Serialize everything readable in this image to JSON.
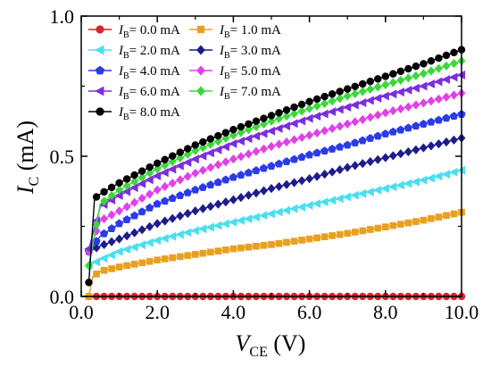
{
  "chart_data": {
    "type": "line",
    "title": "",
    "xlabel": {
      "main": "V",
      "sub": "CE",
      "unit": " (V)"
    },
    "ylabel": {
      "main": "I",
      "sub": "C",
      "unit": " (mA)"
    },
    "xlim": [
      0,
      10
    ],
    "ylim": [
      0,
      1
    ],
    "xticks": [
      "0.0",
      "2.0",
      "4.0",
      "6.0",
      "8.0",
      "10.0"
    ],
    "yticks": [
      "0.0",
      "0.5",
      "1.0"
    ],
    "grid": false,
    "legend_position": "top-left",
    "legend_prefix": {
      "main": "I",
      "sub": "B",
      "eq": "="
    },
    "series": [
      {
        "name": "0.0 mA",
        "color": "#d62728",
        "marker": "circle",
        "points": [
          [
            0.2,
            0.0
          ],
          [
            10,
            0.0
          ]
        ]
      },
      {
        "name": "1.0 mA",
        "color": "#e8a020",
        "marker": "square",
        "points": [
          [
            0.2,
            0.0
          ],
          [
            0.3,
            0.07
          ],
          [
            0.5,
            0.09
          ],
          [
            1,
            0.105
          ],
          [
            2,
            0.13
          ],
          [
            3,
            0.15
          ],
          [
            4,
            0.17
          ],
          [
            5,
            0.185
          ],
          [
            6,
            0.205
          ],
          [
            7,
            0.225
          ],
          [
            8,
            0.248
          ],
          [
            9,
            0.272
          ],
          [
            10,
            0.3
          ]
        ]
      },
      {
        "name": "2.0 mA",
        "color": "#48e0f0",
        "marker": "triangle-left",
        "points": [
          [
            0.2,
            0.11
          ],
          [
            0.5,
            0.13
          ],
          [
            1,
            0.16
          ],
          [
            2,
            0.2
          ],
          [
            3,
            0.235
          ],
          [
            4,
            0.265
          ],
          [
            5,
            0.295
          ],
          [
            6,
            0.325
          ],
          [
            7,
            0.355
          ],
          [
            8,
            0.385
          ],
          [
            9,
            0.415
          ],
          [
            10,
            0.45
          ]
        ]
      },
      {
        "name": "3.0 mA",
        "color": "#1c1c8c",
        "marker": "diamond",
        "points": [
          [
            0.2,
            0.16
          ],
          [
            0.5,
            0.18
          ],
          [
            1,
            0.205
          ],
          [
            2,
            0.26
          ],
          [
            3,
            0.305
          ],
          [
            4,
            0.345
          ],
          [
            5,
            0.385
          ],
          [
            6,
            0.42
          ],
          [
            7,
            0.46
          ],
          [
            8,
            0.495
          ],
          [
            9,
            0.53
          ],
          [
            10,
            0.565
          ]
        ]
      },
      {
        "name": "4.0 mA",
        "color": "#2a3be8",
        "marker": "pentagon",
        "points": [
          [
            0.2,
            0.16
          ],
          [
            0.5,
            0.215
          ],
          [
            1,
            0.26
          ],
          [
            2,
            0.33
          ],
          [
            3,
            0.38
          ],
          [
            4,
            0.425
          ],
          [
            5,
            0.465
          ],
          [
            6,
            0.505
          ],
          [
            7,
            0.54
          ],
          [
            8,
            0.58
          ],
          [
            9,
            0.615
          ],
          [
            10,
            0.65
          ]
        ]
      },
      {
        "name": "5.0 mA",
        "color": "#e040e8",
        "marker": "diamond",
        "points": [
          [
            0.2,
            0.16
          ],
          [
            0.5,
            0.27
          ],
          [
            1,
            0.305
          ],
          [
            2,
            0.38
          ],
          [
            3,
            0.44
          ],
          [
            4,
            0.49
          ],
          [
            5,
            0.535
          ],
          [
            6,
            0.575
          ],
          [
            7,
            0.615
          ],
          [
            8,
            0.655
          ],
          [
            9,
            0.69
          ],
          [
            10,
            0.725
          ]
        ]
      },
      {
        "name": "6.0 mA",
        "color": "#7b2ee0",
        "marker": "triangle-left",
        "points": [
          [
            0.2,
            0.17
          ],
          [
            0.5,
            0.32
          ],
          [
            1,
            0.36
          ],
          [
            2,
            0.43
          ],
          [
            3,
            0.49
          ],
          [
            4,
            0.545
          ],
          [
            5,
            0.59
          ],
          [
            6,
            0.635
          ],
          [
            7,
            0.675
          ],
          [
            8,
            0.715
          ],
          [
            9,
            0.75
          ],
          [
            10,
            0.79
          ]
        ]
      },
      {
        "name": "7.0 mA",
        "color": "#3ad83a",
        "marker": "diamond",
        "points": [
          [
            0.2,
            0.11
          ],
          [
            0.5,
            0.33
          ],
          [
            1,
            0.38
          ],
          [
            2,
            0.455
          ],
          [
            3,
            0.52
          ],
          [
            4,
            0.575
          ],
          [
            5,
            0.625
          ],
          [
            6,
            0.67
          ],
          [
            7,
            0.715
          ],
          [
            8,
            0.755
          ],
          [
            9,
            0.795
          ],
          [
            10,
            0.84
          ]
        ]
      },
      {
        "name": "8.0 mA",
        "color": "#000000",
        "marker": "circle",
        "points": [
          [
            0.2,
            0.05
          ],
          [
            0.35,
            0.35
          ],
          [
            0.5,
            0.365
          ],
          [
            1,
            0.405
          ],
          [
            2,
            0.475
          ],
          [
            3,
            0.54
          ],
          [
            4,
            0.595
          ],
          [
            5,
            0.645
          ],
          [
            6,
            0.695
          ],
          [
            7,
            0.74
          ],
          [
            8,
            0.785
          ],
          [
            9,
            0.83
          ],
          [
            10,
            0.88
          ]
        ]
      }
    ]
  }
}
